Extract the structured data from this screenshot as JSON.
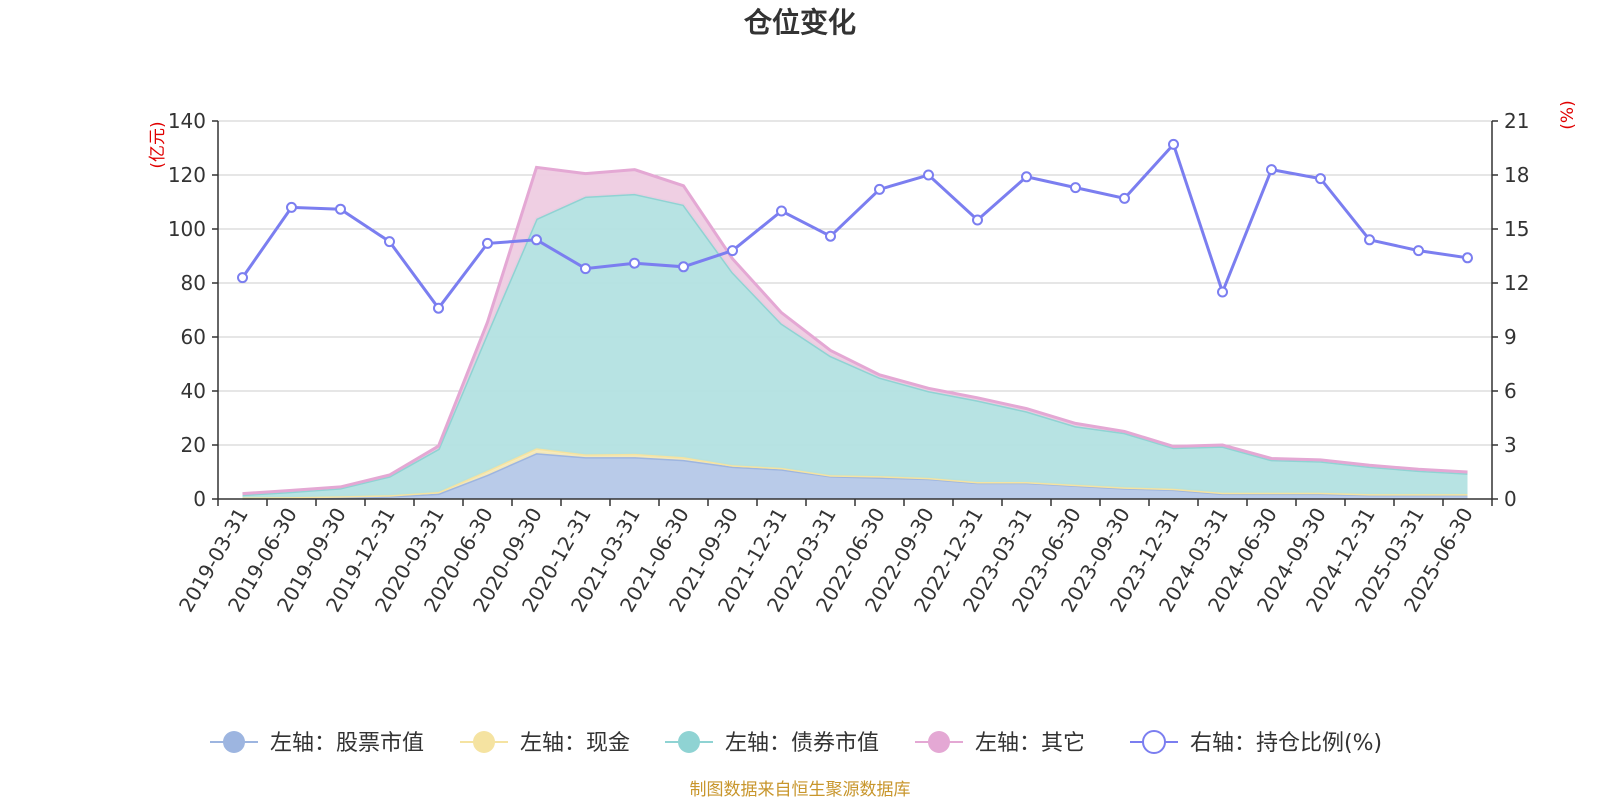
{
  "chart_data": {
    "type": "area",
    "title": "仓位变化",
    "left_unit": "(亿元)",
    "right_unit": "(%)",
    "categories": [
      "2019-03-31",
      "2019-06-30",
      "2019-09-30",
      "2019-12-31",
      "2020-03-31",
      "2020-06-30",
      "2020-09-30",
      "2020-12-31",
      "2021-03-31",
      "2021-06-30",
      "2021-09-30",
      "2021-12-31",
      "2022-03-31",
      "2022-06-30",
      "2022-09-30",
      "2022-12-31",
      "2023-03-31",
      "2023-06-30",
      "2023-09-30",
      "2023-12-31",
      "2024-03-31",
      "2024-06-30",
      "2024-09-30",
      "2024-12-31",
      "2025-03-31",
      "2025-06-30"
    ],
    "left_axis": {
      "min": 0,
      "max": 140,
      "ticks": [
        "0",
        "20",
        "40",
        "60",
        "80",
        "100",
        "120",
        "140"
      ]
    },
    "right_axis": {
      "min": 0,
      "max": 21,
      "ticks": [
        "0",
        "3",
        "6",
        "9",
        "12",
        "15",
        "18",
        "21"
      ]
    },
    "series": [
      {
        "name": "左轴：股票市值",
        "axis": "left",
        "stack": true,
        "color": "#9db5e0",
        "fill": "#b5c8e8",
        "values": [
          0.3,
          0.4,
          0.6,
          1.0,
          2.0,
          9.0,
          17.0,
          15.5,
          15.5,
          14.5,
          12.0,
          11.0,
          8.5,
          8.0,
          7.5,
          6.0,
          6.0,
          5.0,
          4.0,
          3.5,
          2.0,
          2.0,
          2.0,
          1.5,
          1.5,
          1.5
        ]
      },
      {
        "name": "左轴：现金",
        "axis": "left",
        "stack": true,
        "color": "#f5e3a1",
        "fill": "#f7eab8",
        "values": [
          0.3,
          0.3,
          0.4,
          0.4,
          0.6,
          1.5,
          1.8,
          1.0,
          1.2,
          1.0,
          0.5,
          0.5,
          0.3,
          0.5,
          0.3,
          0.3,
          0.3,
          0.3,
          0.3,
          0.3,
          0.3,
          0.3,
          0.3,
          0.3,
          0.3,
          0.3
        ]
      },
      {
        "name": "左轴：债券市值",
        "axis": "left",
        "stack": true,
        "color": "#8fd3d3",
        "fill": "#b3e1e1",
        "values": [
          1.0,
          2.0,
          3.0,
          7.0,
          16.0,
          51.0,
          85.0,
          95.5,
          96.3,
          93.5,
          71.5,
          53.5,
          44.2,
          36.5,
          32.2,
          30.2,
          26.2,
          21.7,
          20.2,
          15.2,
          17.2,
          12.2,
          11.7,
          10.2,
          8.7,
          7.7
        ]
      },
      {
        "name": "左轴：其它",
        "axis": "left",
        "stack": true,
        "color": "#e4a8d4",
        "fill": "#eecce2",
        "values": [
          0.4,
          0.5,
          0.5,
          0.5,
          1.0,
          4.0,
          19.0,
          8.5,
          9.0,
          7.0,
          5.0,
          4.0,
          2.0,
          1.0,
          1.0,
          1.0,
          1.0,
          1.0,
          0.5,
          0.5,
          0.5,
          0.5,
          0.5,
          0.5,
          0.5,
          0.5
        ]
      },
      {
        "name": "右轴：持仓比例(%)",
        "axis": "right",
        "stack": false,
        "color": "#7b7ef0",
        "values": [
          12.3,
          16.2,
          16.1,
          14.3,
          10.6,
          14.2,
          14.4,
          12.8,
          13.1,
          12.9,
          13.8,
          16.0,
          14.6,
          17.2,
          18.0,
          15.5,
          17.9,
          17.3,
          16.7,
          19.7,
          11.5,
          18.3,
          17.8,
          14.4,
          13.8,
          13.4
        ]
      }
    ]
  },
  "footer": {
    "source": "制图数据来自恒生聚源数据库"
  }
}
